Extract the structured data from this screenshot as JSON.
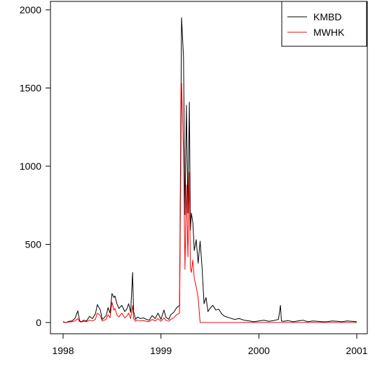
{
  "chart_data": {
    "type": "line",
    "title": "",
    "xlabel": "",
    "ylabel": "",
    "xlim": [
      1998,
      2001
    ],
    "ylim": [
      0,
      2000
    ],
    "x_ticks": [
      {
        "value": 1998,
        "label": "1998"
      },
      {
        "value": 1999,
        "label": "1999"
      },
      {
        "value": 2000,
        "label": "2000"
      },
      {
        "value": 2001,
        "label": "2001"
      }
    ],
    "y_ticks": [
      {
        "value": 0,
        "label": "0"
      },
      {
        "value": 500,
        "label": "500"
      },
      {
        "value": 1000,
        "label": "1000"
      },
      {
        "value": 1500,
        "label": "1500"
      },
      {
        "value": 2000,
        "label": "2000"
      }
    ],
    "grid": false,
    "legend_position": "top-right",
    "series": [
      {
        "name": "KMBD",
        "color": "#000000",
        "x": [
          1998.0,
          1998.03,
          1998.06,
          1998.09,
          1998.12,
          1998.15,
          1998.17,
          1998.19,
          1998.21,
          1998.24,
          1998.27,
          1998.3,
          1998.33,
          1998.35,
          1998.38,
          1998.4,
          1998.42,
          1998.44,
          1998.46,
          1998.48,
          1998.5,
          1998.52,
          1998.53,
          1998.55,
          1998.57,
          1998.6,
          1998.63,
          1998.65,
          1998.67,
          1998.69,
          1998.71,
          1998.72,
          1998.74,
          1998.76,
          1998.79,
          1998.82,
          1998.85,
          1998.88,
          1998.91,
          1998.94,
          1998.97,
          1999.0,
          1999.03,
          1999.05,
          1999.08,
          1999.1,
          1999.13,
          1999.16,
          1999.19,
          1999.21,
          1999.23,
          1999.245,
          1999.26,
          1999.275,
          1999.29,
          1999.3,
          1999.31,
          1999.325,
          1999.34,
          1999.36,
          1999.38,
          1999.4,
          1999.42,
          1999.44,
          1999.46,
          1999.48,
          1999.5,
          1999.53,
          1999.56,
          1999.59,
          1999.62,
          1999.65,
          1999.7,
          1999.75,
          1999.8,
          1999.85,
          1999.9,
          1999.95,
          2000.0,
          2000.05,
          2000.1,
          2000.15,
          2000.2,
          2000.22,
          2000.23,
          2000.25,
          2000.3,
          2000.35,
          2000.4,
          2000.45,
          2000.5,
          2000.55,
          2000.6,
          2000.65,
          2000.7,
          2000.75,
          2000.8,
          2000.85,
          2000.9,
          2000.95,
          2001.0
        ],
        "y": [
          5,
          0,
          8,
          10,
          25,
          75,
          10,
          5,
          15,
          10,
          40,
          25,
          55,
          115,
          80,
          20,
          30,
          45,
          95,
          60,
          185,
          160,
          170,
          120,
          90,
          110,
          70,
          85,
          120,
          65,
          320,
          70,
          20,
          35,
          25,
          30,
          20,
          15,
          45,
          25,
          60,
          20,
          80,
          35,
          20,
          50,
          65,
          95,
          110,
          1950,
          1700,
          690,
          1390,
          700,
          1410,
          590,
          700,
          640,
          460,
          530,
          380,
          520,
          350,
          120,
          160,
          70,
          90,
          110,
          80,
          85,
          55,
          40,
          30,
          20,
          25,
          15,
          10,
          5,
          10,
          15,
          8,
          12,
          20,
          110,
          10,
          8,
          12,
          5,
          10,
          15,
          5,
          10,
          8,
          5,
          6,
          10,
          8,
          5,
          10,
          8,
          5
        ]
      },
      {
        "name": "MWHK",
        "color": "#ff0000",
        "x": [
          1998.0,
          1998.03,
          1998.06,
          1998.09,
          1998.12,
          1998.15,
          1998.17,
          1998.19,
          1998.21,
          1998.24,
          1998.27,
          1998.3,
          1998.33,
          1998.35,
          1998.38,
          1998.4,
          1998.42,
          1998.44,
          1998.46,
          1998.48,
          1998.5,
          1998.52,
          1998.53,
          1998.55,
          1998.57,
          1998.6,
          1998.63,
          1998.65,
          1998.67,
          1998.69,
          1998.71,
          1998.72,
          1998.74,
          1998.76,
          1998.79,
          1998.82,
          1998.85,
          1998.88,
          1998.91,
          1998.94,
          1998.97,
          1999.0,
          1999.03,
          1999.05,
          1999.08,
          1999.1,
          1999.13,
          1999.16,
          1999.19,
          1999.21,
          1999.23,
          1999.245,
          1999.26,
          1999.275,
          1999.29,
          1999.3,
          1999.31,
          1999.325,
          1999.34,
          1999.36,
          1999.38,
          1999.4,
          1999.42,
          1999.44,
          1999.46,
          1999.48,
          1999.5,
          1999.53,
          1999.56,
          1999.59,
          1999.62,
          1999.65,
          1999.7,
          1999.75,
          1999.8,
          1999.85,
          1999.9,
          1999.95,
          2000.0,
          2000.05,
          2000.1,
          2000.15,
          2000.2,
          2000.22,
          2000.23,
          2000.25,
          2000.3,
          2000.35,
          2000.4,
          2000.45,
          2000.5,
          2000.55,
          2000.6,
          2000.65,
          2000.7,
          2000.75,
          2000.8,
          2000.85,
          2000.9,
          2000.95,
          2001.0
        ],
        "y": [
          2,
          0,
          3,
          5,
          10,
          25,
          5,
          3,
          8,
          5,
          15,
          10,
          20,
          60,
          45,
          10,
          15,
          20,
          50,
          30,
          130,
          80,
          90,
          50,
          35,
          60,
          30,
          40,
          60,
          25,
          110,
          25,
          8,
          15,
          10,
          12,
          8,
          5,
          20,
          10,
          25,
          8,
          30,
          15,
          8,
          20,
          30,
          50,
          60,
          1530,
          1100,
          340,
          880,
          420,
          960,
          350,
          320,
          400,
          280,
          230,
          160,
          0,
          0,
          0,
          0,
          0,
          0,
          0,
          0,
          0,
          0,
          0,
          0,
          0,
          0,
          0,
          0,
          0,
          0,
          0,
          0,
          0,
          0,
          0,
          0,
          0,
          0,
          0,
          0,
          0,
          0,
          0,
          0,
          0,
          0,
          0,
          0,
          0,
          0,
          0,
          0
        ]
      }
    ]
  }
}
